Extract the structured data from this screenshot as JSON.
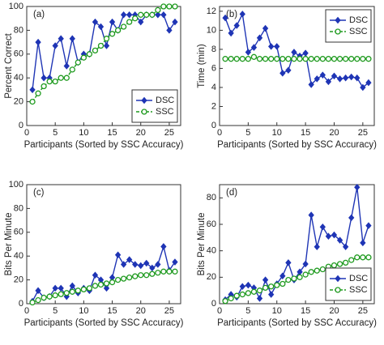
{
  "chart_data": [
    {
      "type": "line",
      "annotation": "(a)",
      "ylabel": "Percent Correct",
      "xlabel": "Participants (Sorted by SSC Accuracy)",
      "x": [
        1,
        2,
        3,
        4,
        5,
        6,
        7,
        8,
        9,
        10,
        11,
        12,
        13,
        14,
        15,
        16,
        17,
        18,
        19,
        20,
        21,
        22,
        23,
        24,
        25,
        26
      ],
      "xlim": [
        0,
        27
      ],
      "xticks": [
        0,
        5,
        10,
        15,
        20,
        25
      ],
      "ylim": [
        0,
        100
      ],
      "yticks": [
        0,
        20,
        40,
        60,
        80,
        100
      ],
      "legend": "lower right",
      "series": [
        {
          "name": "DSC",
          "color": "#1f35b5",
          "marker": "diamond",
          "linestyle": "solid",
          "values": [
            30,
            70,
            40,
            40,
            67,
            73,
            50,
            73,
            53,
            60,
            60,
            87,
            83,
            67,
            87,
            80,
            93,
            93,
            93,
            87,
            93,
            93,
            93,
            93,
            80,
            87
          ]
        },
        {
          "name": "SSC",
          "color": "#1e9a1e",
          "marker": "circle",
          "linestyle": "dashed",
          "values": [
            20,
            27,
            33,
            37,
            37,
            40,
            40,
            47,
            53,
            57,
            60,
            63,
            67,
            73,
            77,
            80,
            83,
            87,
            90,
            93,
            93,
            93,
            97,
            100,
            100,
            100
          ]
        }
      ]
    },
    {
      "type": "line",
      "annotation": "(b)",
      "ylabel": "Time (min)",
      "xlabel": "Participants (Sorted by SSC Accuracy)",
      "x": [
        1,
        2,
        3,
        4,
        5,
        6,
        7,
        8,
        9,
        10,
        11,
        12,
        13,
        14,
        15,
        16,
        17,
        18,
        19,
        20,
        21,
        22,
        23,
        24,
        25,
        26
      ],
      "xlim": [
        0,
        27
      ],
      "xticks": [
        0,
        5,
        10,
        15,
        20,
        25
      ],
      "ylim": [
        0,
        12.5
      ],
      "yticks": [
        0,
        2,
        4,
        6,
        8,
        10,
        12
      ],
      "legend": "upper right",
      "series": [
        {
          "name": "DSC",
          "color": "#1f35b5",
          "marker": "diamond",
          "linestyle": "solid",
          "values": [
            11.3,
            9.7,
            10.5,
            11.7,
            7.7,
            8.2,
            9.2,
            10.2,
            8.3,
            8.3,
            5.5,
            5.8,
            7.7,
            7.3,
            7.6,
            4.3,
            4.9,
            5.3,
            4.6,
            5.2,
            4.9,
            5.0,
            5.1,
            5.0,
            4.0,
            4.5
          ]
        },
        {
          "name": "SSC",
          "color": "#1e9a1e",
          "marker": "circle",
          "linestyle": "dashed",
          "values": [
            7,
            7,
            7,
            7,
            7,
            7.2,
            7,
            7,
            7,
            7,
            7,
            7,
            7,
            7,
            7,
            7,
            7,
            7,
            7,
            7,
            7,
            7,
            7,
            7,
            7,
            7
          ]
        }
      ]
    },
    {
      "type": "line",
      "annotation": "(c)",
      "ylabel": "Bits Per Minute",
      "xlabel": "Participants (Sorted by SSC Accuracy)",
      "x": [
        1,
        2,
        3,
        4,
        5,
        6,
        7,
        8,
        9,
        10,
        11,
        12,
        13,
        14,
        15,
        16,
        17,
        18,
        19,
        20,
        21,
        22,
        23,
        24,
        25,
        26
      ],
      "xlim": [
        0,
        27
      ],
      "xticks": [
        0,
        5,
        10,
        15,
        20,
        25
      ],
      "ylim": [
        0,
        100
      ],
      "yticks": [
        0,
        20,
        40,
        60,
        80,
        100
      ],
      "series": [
        {
          "color": "#1f35b5",
          "marker": "diamond",
          "linestyle": "solid",
          "values": [
            2,
            11,
            5,
            6,
            13,
            13,
            6,
            15,
            9,
            13,
            11,
            24,
            20,
            13,
            22,
            41,
            33,
            37,
            33,
            32,
            34,
            30,
            33,
            48,
            28,
            35
          ]
        },
        {
          "color": "#1e9a1e",
          "marker": "circle",
          "linestyle": "dashed",
          "values": [
            1,
            3,
            5,
            6,
            7,
            8,
            9,
            10,
            11,
            12,
            13,
            15,
            16,
            17,
            18,
            20,
            21,
            22,
            23,
            24,
            24,
            25,
            26,
            27,
            27,
            27
          ]
        }
      ]
    },
    {
      "type": "line",
      "annotation": "(d)",
      "ylabel": "Bits Per Minute",
      "xlabel": "Participants (Sorted by SSC Accuracy)",
      "x": [
        1,
        2,
        3,
        4,
        5,
        6,
        7,
        8,
        9,
        10,
        11,
        12,
        13,
        14,
        15,
        16,
        17,
        18,
        19,
        20,
        21,
        22,
        23,
        24,
        25,
        26
      ],
      "xlim": [
        0,
        27
      ],
      "xticks": [
        0,
        5,
        10,
        15,
        20,
        25
      ],
      "ylim": [
        0,
        90
      ],
      "yticks": [
        0,
        20,
        40,
        60,
        80
      ],
      "legend": "lower right",
      "series": [
        {
          "name": "DSC",
          "color": "#1f35b5",
          "marker": "diamond",
          "linestyle": "solid",
          "values": [
            3,
            7,
            5,
            13,
            14,
            12,
            4,
            18,
            7,
            15,
            21,
            31,
            18,
            24,
            30,
            67,
            43,
            58,
            51,
            52,
            48,
            43,
            65,
            88,
            46,
            59
          ]
        },
        {
          "name": "SSC",
          "color": "#1e9a1e",
          "marker": "circle",
          "linestyle": "dashed",
          "values": [
            2,
            4,
            6,
            7,
            8,
            9,
            10,
            12,
            13,
            14,
            15,
            18,
            19,
            20,
            22,
            24,
            25,
            26,
            28,
            29,
            30,
            31,
            33,
            35,
            35,
            35
          ]
        }
      ]
    }
  ]
}
